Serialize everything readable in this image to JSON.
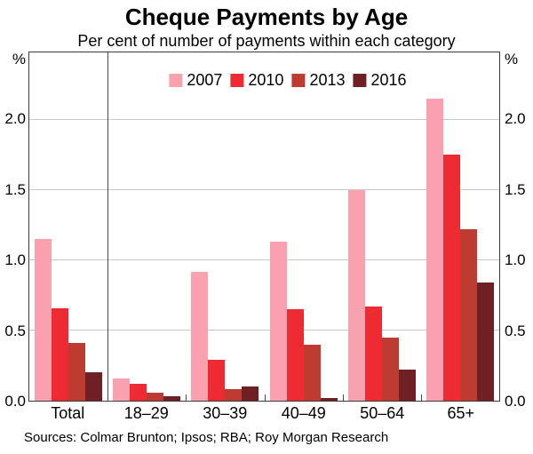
{
  "chart_data": {
    "type": "bar",
    "title": "Cheque Payments by Age",
    "subtitle": "Per cent of number of payments within each category",
    "categories": [
      "Total",
      "18–29",
      "30–39",
      "40–49",
      "50–64",
      "65+"
    ],
    "series": [
      {
        "name": "2007",
        "color": "#F9A1AE",
        "values": [
          1.15,
          0.16,
          0.92,
          1.13,
          1.5,
          2.15
        ]
      },
      {
        "name": "2010",
        "color": "#EE2B33",
        "values": [
          0.66,
          0.12,
          0.29,
          0.65,
          0.67,
          1.75
        ]
      },
      {
        "name": "2013",
        "color": "#BE3B31",
        "values": [
          0.41,
          0.06,
          0.08,
          0.4,
          0.45,
          1.22
        ]
      },
      {
        "name": "2016",
        "color": "#6E2024",
        "values": [
          0.2,
          0.03,
          0.1,
          0.02,
          0.22,
          0.84
        ]
      }
    ],
    "ylabel_left": "%",
    "ylabel_right": "%",
    "ylim": [
      0,
      2.48
    ],
    "yticks": [
      0.0,
      0.5,
      1.0,
      1.5,
      2.0
    ],
    "ytick_labels": [
      "0.0",
      "0.5",
      "1.0",
      "1.5",
      "2.0"
    ],
    "grid": true,
    "legend_position": "top-center",
    "separator_after_category": "Total",
    "source": "Sources: Colmar Brunton; Ipsos; RBA; Roy Morgan Research",
    "frame_color": "#3a3a3a",
    "gridline_color": "#c9c9c9"
  }
}
